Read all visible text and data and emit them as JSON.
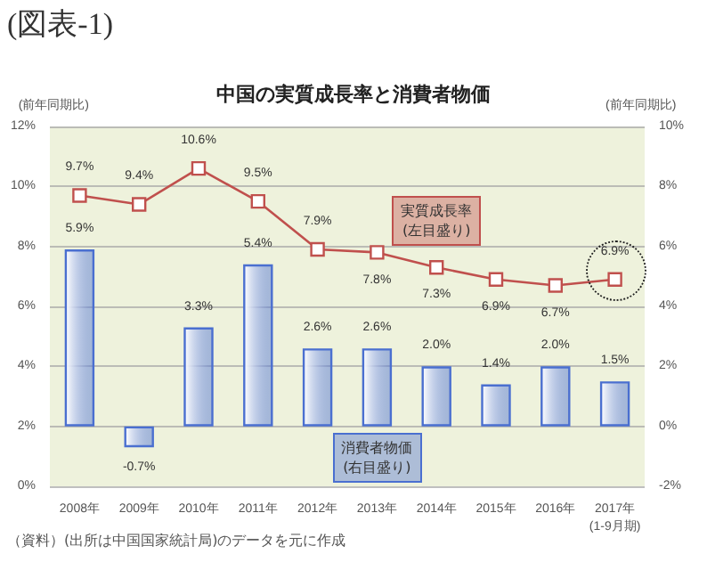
{
  "chart_data": {
    "type": "bar",
    "title": "中国の実質成長率と消費者物価",
    "ylabel": "(前年同期比)",
    "y2label": "(前年同期比)",
    "annotations": [
      "(図表-1)",
      "（資料）(出所は中国国家統計局)のデータを元に作成"
    ],
    "categories": [
      "2008年",
      "2009年",
      "2010年",
      "2011年",
      "2012年",
      "2013年",
      "2014年",
      "2015年",
      "2016年",
      "2017年\n(1-9月期)"
    ],
    "series": [
      {
        "name": "消費者物価\n(右目盛り)",
        "axis": "y2",
        "color": "#4a6fd0",
        "values": [
          5.9,
          -0.7,
          3.3,
          5.4,
          2.6,
          2.6,
          2.0,
          1.4,
          2.0,
          1.5
        ],
        "value_labels": [
          "5.9%",
          "-0.7%",
          "3.3%",
          "5.4%",
          "2.6%",
          "2.6%",
          "2.0%",
          "1.4%",
          "2.0%",
          "1.5%"
        ]
      },
      {
        "name": "実質成長率\n(左目盛り)",
        "type": "line",
        "color": "#c0504d",
        "values": [
          9.7,
          9.4,
          10.6,
          9.5,
          7.9,
          7.8,
          7.3,
          6.9,
          6.7,
          6.9
        ],
        "value_labels": [
          "9.7%",
          "9.4%",
          "10.6%",
          "9.5%",
          "7.9%",
          "7.8%",
          "7.3%",
          "6.9%",
          "6.7%",
          "6.9%"
        ]
      }
    ],
    "ylim": [
      0,
      12
    ],
    "yticks": [
      {
        "value": 0,
        "label": "0%"
      },
      {
        "value": 2,
        "label": "2%"
      },
      {
        "value": 4,
        "label": "4%"
      },
      {
        "value": 6,
        "label": "6%"
      },
      {
        "value": 8,
        "label": "8%"
      },
      {
        "value": 10,
        "label": "10%"
      },
      {
        "value": 12,
        "label": "12%"
      }
    ],
    "y2lim": [
      -2,
      10
    ],
    "y2ticks": [
      {
        "value": -2,
        "label": "-2%"
      },
      {
        "value": 0,
        "label": "0%"
      },
      {
        "value": 2,
        "label": "2%"
      },
      {
        "value": 4,
        "label": "4%"
      },
      {
        "value": 6,
        "label": "6%"
      },
      {
        "value": 8,
        "label": "8%"
      },
      {
        "value": 10,
        "label": "10%"
      }
    ],
    "grid": "y",
    "legend": false,
    "marker": "square",
    "line_style": "solid"
  }
}
